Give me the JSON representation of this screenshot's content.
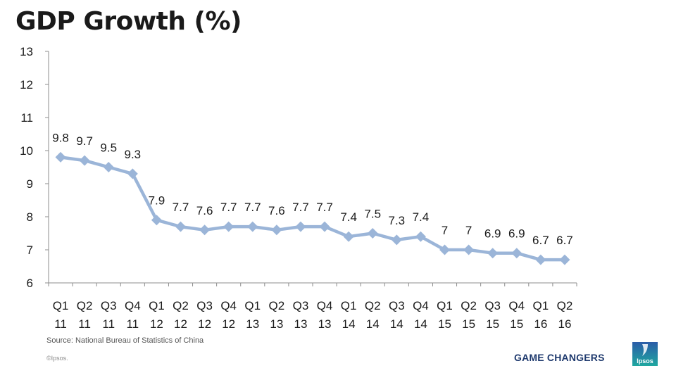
{
  "slide": {
    "title": "GDP Growth (%)",
    "source": "Source: National Bureau of Statistics of China",
    "copyright": "©Ipsos.",
    "brand_tagline": "GAME CHANGERS",
    "logo_text": "Ipsos",
    "colors": {
      "line": "#9bb5d8",
      "axis": "#8c8c8c",
      "text": "#1a1a1a",
      "brand": "#1f3a6e",
      "logo_top": "#2b5da8",
      "logo_bottom": "#1fa7a0"
    }
  },
  "chart_data": {
    "type": "line",
    "title": "GDP Growth (%)",
    "xlabel": "",
    "ylabel": "",
    "categories": [
      [
        "Q1",
        "11"
      ],
      [
        "Q2",
        "11"
      ],
      [
        "Q3",
        "11"
      ],
      [
        "Q4",
        "11"
      ],
      [
        "Q1",
        "12"
      ],
      [
        "Q2",
        "12"
      ],
      [
        "Q3",
        "12"
      ],
      [
        "Q4",
        "12"
      ],
      [
        "Q1",
        "13"
      ],
      [
        "Q2",
        "13"
      ],
      [
        "Q3",
        "13"
      ],
      [
        "Q4",
        "13"
      ],
      [
        "Q1",
        "14"
      ],
      [
        "Q2",
        "14"
      ],
      [
        "Q3",
        "14"
      ],
      [
        "Q4",
        "14"
      ],
      [
        "Q1",
        "15"
      ],
      [
        "Q2",
        "15"
      ],
      [
        "Q3",
        "15"
      ],
      [
        "Q4",
        "15"
      ],
      [
        "Q1",
        "16"
      ],
      [
        "Q2",
        "16"
      ]
    ],
    "series": [
      {
        "values": [
          9.8,
          9.7,
          9.5,
          9.3,
          7.9,
          7.7,
          7.6,
          7.7,
          7.7,
          7.6,
          7.7,
          7.7,
          7.4,
          7.5,
          7.3,
          7.4,
          7,
          7,
          6.9,
          6.9,
          6.7,
          6.7
        ],
        "data_labels": [
          "9.8",
          "9.7",
          "9.5",
          "9.3",
          "7.9",
          "7.7",
          "7.6",
          "7.7",
          "7.7",
          "7.6",
          "7.7",
          "7.7",
          "7.4",
          "7.5",
          "7.3",
          "7.4",
          "7",
          "7",
          "6.9",
          "6.9",
          "6.7",
          "6.7"
        ],
        "marker": "diamond"
      }
    ],
    "ylim": [
      6,
      13
    ],
    "yticks": [
      6,
      7,
      8,
      9,
      10,
      11,
      12,
      13
    ],
    "grid": false,
    "legend": "none"
  }
}
